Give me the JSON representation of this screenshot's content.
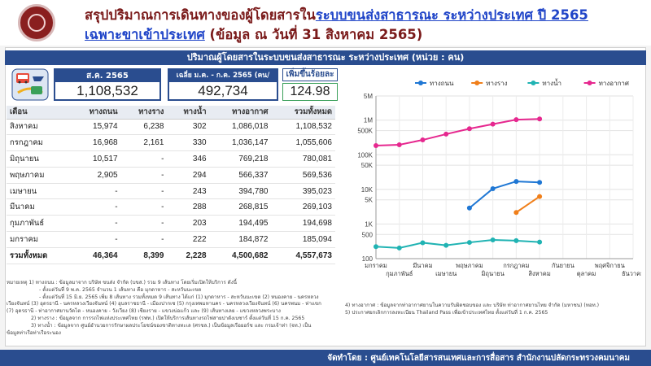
{
  "header": {
    "title_prefix": "สรุปปริมาณการเดินทางของผู้โดยสารใน",
    "title_highlight": "ระบบขนส่งสาธารณะ ระหว่างประเทศ ปี 2565",
    "subtitle_highlight": "เฉพาะขาเข้าประเทศ",
    "subtitle_suffix": " (ข้อมูล ณ วันที่ 31 สิงหาคม 2565)"
  },
  "banner": "ปริมาณผู้โดยสารในระบบขนส่งสาธารณะ ระหว่างประเทศ (หน่วย : คน)",
  "kpi": {
    "month_label": "ส.ค. 2565",
    "month_value": "1,108,532",
    "avg_label": "เฉลี่ย ม.ค. - ก.ค. 2565 (คน/เดือน)",
    "avg_value": "492,734",
    "growth_label": "เพิ่มขึ้นร้อยละ",
    "growth_value": "124.98"
  },
  "table": {
    "headers": [
      "เดือน",
      "ทางถนน",
      "ทางราง",
      "ทางน้ำ",
      "ทางอากาศ",
      "รวมทั้งหมด"
    ],
    "rows": [
      [
        "สิงหาคม",
        "15,974",
        "6,238",
        "302",
        "1,086,018",
        "1,108,532"
      ],
      [
        "กรกฎาคม",
        "16,968",
        "2,161",
        "330",
        "1,036,147",
        "1,055,606"
      ],
      [
        "มิถุนายน",
        "10,517",
        "-",
        "346",
        "769,218",
        "780,081"
      ],
      [
        "พฤษภาคม",
        "2,905",
        "-",
        "294",
        "566,337",
        "569,536"
      ],
      [
        "เมษายน",
        "-",
        "-",
        "243",
        "394,780",
        "395,023"
      ],
      [
        "มีนาคม",
        "-",
        "-",
        "288",
        "268,815",
        "269,103"
      ],
      [
        "กุมภาพันธ์",
        "-",
        "-",
        "203",
        "194,495",
        "194,698"
      ],
      [
        "มกราคม",
        "-",
        "-",
        "222",
        "184,872",
        "185,094"
      ]
    ],
    "total": [
      "รวมทั้งหมด",
      "46,364",
      "8,399",
      "2,228",
      "4,500,682",
      "4,557,673"
    ]
  },
  "chart_data": {
    "type": "line",
    "categories": [
      "มกราคม",
      "กุมภาพันธ์",
      "มีนาคม",
      "เมษายน",
      "พฤษภาคม",
      "มิถุนายน",
      "กรกฎาคม",
      "สิงหาคม",
      "กันยายน",
      "ตุลาคม",
      "พฤศจิกายน",
      "ธันวาคม"
    ],
    "y_scale": "log",
    "y_ticks": [
      {
        "v": 100,
        "label": "100"
      },
      {
        "v": 500,
        "label": "500"
      },
      {
        "v": 1000,
        "label": "1K"
      },
      {
        "v": 5000,
        "label": "5K"
      },
      {
        "v": 10000,
        "label": "10K"
      },
      {
        "v": 50000,
        "label": "50K"
      },
      {
        "v": 100000,
        "label": "100K"
      },
      {
        "v": 500000,
        "label": "500K"
      },
      {
        "v": 1000000,
        "label": "1M"
      },
      {
        "v": 5000000,
        "label": "5M"
      }
    ],
    "ylim": [
      100,
      5000000
    ],
    "series": [
      {
        "name": "ทางถนน",
        "color": "#1f77d4",
        "values": [
          null,
          null,
          null,
          null,
          2905,
          10517,
          16968,
          15974,
          null,
          null,
          null,
          null
        ]
      },
      {
        "name": "ทางราง",
        "color": "#f07f1a",
        "values": [
          null,
          null,
          null,
          null,
          null,
          null,
          2161,
          6238,
          null,
          null,
          null,
          null
        ]
      },
      {
        "name": "ทางน้ำ",
        "color": "#20b3b3",
        "values": [
          222,
          203,
          288,
          243,
          294,
          346,
          330,
          302,
          null,
          null,
          null,
          null
        ]
      },
      {
        "name": "ทางอากาศ",
        "color": "#e6288f",
        "values": [
          184872,
          194495,
          268815,
          394780,
          566337,
          769218,
          1036147,
          1086018,
          null,
          null,
          null,
          null
        ]
      }
    ],
    "legend_position": "top",
    "grid": true
  },
  "notes": {
    "left": [
      "หมายเหตุ 1) ทางถนน : ข้อมูลมาจาก บริษัท ขนส่ง จำกัด (บขส.) รวม 9 เส้นทาง โดยเริ่มเปิดให้บริการ ดังนี้",
      "- ตั้งแต่วันที่ 9 พ.ค. 2565 จำนวน 1 เส้นทาง คือ มุกดาหาร - สะหวันนะเขต",
      "- ตั้งแต่วันที่ 15 มิ.ย. 2565 เพิ่ม 8 เส้นทาง รวมทั้งหมด 9 เส้นทาง ได้แก่ (1) มุกดาหาร - สะหวันนะเขต (2) หนองคาย - นครหลวง",
      "เวียงจันทน์ (3) อุดรธานี - นครหลวงเวียงจันทน์ (4) อุบลราชธานี - เมืองปากเซ (5) กรุงเทพมหานคร - นครหลวงเวียงจันทน์ (6) นครพนม - ท่าแขก",
      "(7) อุดรธานี - ท่าอากาศยานวัดไต - หนองคาย - วังเวียง (8) เชียงราย - แขวงบ่อแก้ว และ (9) เส้นทางเลย - แขวงหลวงพระบาง",
      "2) ทางราง : ข้อมูลจาก การรถไฟแห่งประเทศไทย (รฟท.) เปิดให้บริการเส้นทางรถไฟสายปาดังเบซาร์ ตั้งแต่วันที่ 15 ก.ค. 2565",
      "3) ทางน้ำ : ข้อมูลจาก ศูนย์อำนวยการรักษาผลประโยชน์ของชาติทางทะเล (ศรชล.) เป็นข้อมูลเรือยอร์ช และ กรมเจ้าท่า (จท.) เป็น",
      "ข้อมูลท่าเรือท่าเรือระนอง"
    ],
    "right": [
      "4) ทางอากาศ : ข้อมูลจากท่าอากาศยานในความรับผิดชอบของ และ บริษัท ท่าอากาศยานไทย จำกัด (มหาชน) (ทอท.)",
      "5) ประกาศยกเลิกการลงทะเบียน Thailand Pass เพื่อเข้าประเทศไทย ตั้งแต่วันที่ 1 ก.ค. 2565"
    ]
  },
  "footer": "จัดทำโดย : ศูนย์เทคโนโลยีสารสนเทศและการสื่อสาร สำนักงานปลัดกระทรวงคมนาคม"
}
